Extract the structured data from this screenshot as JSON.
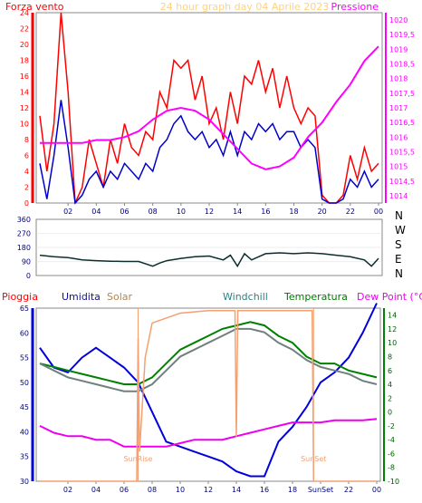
{
  "header": {
    "left_label": "Forza vento",
    "title": "24 hour graph day   04 Aprile 2023",
    "right_label": "Pressione"
  },
  "chart_data": [
    {
      "id": "wind_pressure",
      "type": "line",
      "x_ticks": [
        "02",
        "04",
        "06",
        "08",
        "10",
        "12",
        "14",
        "16",
        "18",
        "20",
        "22",
        "00"
      ],
      "y_left_ticks": [
        "0",
        "2",
        "4",
        "6",
        "8",
        "10",
        "12",
        "14",
        "16",
        "18",
        "20",
        "22",
        "24"
      ],
      "y_left_range": [
        0,
        24
      ],
      "y_right_ticks": [
        "1014",
        "1014,5",
        "1015",
        "1015,5",
        "1016",
        "1016,5",
        "1017",
        "1017,5",
        "1018",
        "1018,5",
        "1019",
        "1019,5",
        "1020"
      ],
      "y_right_range": [
        1013.75,
        1020.25
      ],
      "series": [
        {
          "key": "gust",
          "color": "#ff0000",
          "x": [
            0,
            0.5,
            1,
            1.5,
            2,
            2.5,
            3,
            3.5,
            4,
            4.5,
            5,
            5.5,
            6,
            6.5,
            7,
            7.5,
            8,
            8.5,
            9,
            9.5,
            10,
            10.5,
            11,
            11.5,
            12,
            12.5,
            13,
            13.5,
            14,
            14.5,
            15,
            15.5,
            16,
            16.5,
            17,
            17.5,
            18,
            18.5,
            19,
            19.5,
            20,
            20.5,
            21,
            21.5,
            22,
            22.5,
            23,
            23.5,
            24
          ],
          "values": [
            11,
            4,
            10,
            24,
            14,
            0,
            2,
            8,
            5,
            2,
            8,
            5,
            10,
            7,
            6,
            9,
            8,
            14,
            12,
            18,
            17,
            18,
            13,
            16,
            10,
            12,
            8,
            14,
            10,
            16,
            15,
            18,
            14,
            17,
            12,
            16,
            12,
            10,
            12,
            11,
            1,
            0,
            0,
            1,
            6,
            3,
            7,
            4,
            5
          ]
        },
        {
          "key": "wind",
          "color": "#0000cc",
          "x": [
            0,
            0.5,
            1,
            1.5,
            2,
            2.5,
            3,
            3.5,
            4,
            4.5,
            5,
            5.5,
            6,
            6.5,
            7,
            7.5,
            8,
            8.5,
            9,
            9.5,
            10,
            10.5,
            11,
            11.5,
            12,
            12.5,
            13,
            13.5,
            14,
            14.5,
            15,
            15.5,
            16,
            16.5,
            17,
            17.5,
            18,
            18.5,
            19,
            19.5,
            20,
            20.5,
            21,
            21.5,
            22,
            22.5,
            23,
            23.5,
            24
          ],
          "values": [
            5,
            0.5,
            6,
            13,
            7,
            0,
            1,
            3,
            4,
            2,
            4,
            3,
            5,
            4,
            3,
            5,
            4,
            7,
            8,
            10,
            11,
            9,
            8,
            9,
            7,
            8,
            6,
            9,
            6,
            9,
            8,
            10,
            9,
            10,
            8,
            9,
            9,
            7,
            8,
            7,
            0.5,
            0,
            0,
            0.5,
            3,
            2,
            4,
            2,
            3
          ]
        },
        {
          "key": "pressure",
          "color": "#ff00ff",
          "axis": "right",
          "x": [
            0,
            1,
            2,
            3,
            4,
            5,
            6,
            7,
            8,
            9,
            10,
            11,
            12,
            13,
            14,
            15,
            16,
            17,
            18,
            19,
            20,
            21,
            22,
            23,
            24
          ],
          "values": [
            1015.8,
            1015.8,
            1015.8,
            1015.8,
            1015.9,
            1015.9,
            1016,
            1016.2,
            1016.6,
            1016.9,
            1017,
            1016.9,
            1016.6,
            1016.1,
            1015.6,
            1015.1,
            1014.9,
            1015,
            1015.3,
            1016,
            1016.5,
            1017.2,
            1017.8,
            1018.6,
            1019.1
          ]
        }
      ]
    },
    {
      "id": "wind_direction",
      "type": "line",
      "y_left_ticks": [
        "0",
        "90",
        "180",
        "270",
        "360"
      ],
      "y_right_labels": [
        "N",
        "W",
        "S",
        "E",
        "N"
      ],
      "y_range": [
        0,
        360
      ],
      "series": [
        {
          "key": "direction",
          "color": "#0b2e2e",
          "x": [
            0,
            1,
            2,
            3,
            4,
            5,
            6,
            7,
            8,
            8.5,
            9,
            10,
            11,
            12,
            13,
            13.5,
            14,
            14.5,
            15,
            16,
            17,
            18,
            19,
            20,
            21,
            22,
            23,
            23.5,
            24
          ],
          "values": [
            130,
            120,
            115,
            100,
            95,
            92,
            90,
            90,
            60,
            80,
            95,
            110,
            120,
            125,
            100,
            130,
            60,
            140,
            100,
            140,
            145,
            140,
            145,
            140,
            130,
            120,
            100,
            60,
            110
          ]
        }
      ]
    },
    {
      "id": "weather",
      "type": "line",
      "legend": [
        "Pioggia",
        "Umidita",
        "Solar",
        "Windchill",
        "Temperatura",
        "Dew Point (°C)"
      ],
      "x_ticks": [
        "02",
        "04",
        "06",
        "08",
        "10",
        "12",
        "14",
        "16",
        "18",
        "SunSet",
        "22",
        "00"
      ],
      "y_left_ticks": [
        "30",
        "35",
        "40",
        "45",
        "50",
        "55",
        "60",
        "65"
      ],
      "y_left_range": [
        30,
        65
      ],
      "y_right_ticks": [
        "-10",
        "-8",
        "-6",
        "-4",
        "-2",
        "0",
        "2",
        "4",
        "6",
        "8",
        "10",
        "12",
        "14"
      ],
      "y_right_range": [
        -10,
        15
      ],
      "annotations": {
        "sunrise": "SunRise",
        "sunset": "SunSet"
      },
      "series": [
        {
          "key": "humidity",
          "color": "#0000dd",
          "x": [
            0,
            1,
            2,
            3,
            4,
            5,
            6,
            7,
            8,
            9,
            10,
            11,
            12,
            13,
            14,
            15,
            16,
            17,
            18,
            19,
            20,
            21,
            22,
            23,
            24
          ],
          "values": [
            57,
            53,
            52,
            55,
            57,
            55,
            53,
            50,
            44,
            38,
            37,
            36,
            35,
            34,
            32,
            31,
            31,
            38,
            41,
            45,
            50,
            52,
            55,
            60,
            66
          ]
        },
        {
          "key": "temperature",
          "color": "#008000",
          "axis": "right",
          "x": [
            0,
            1,
            2,
            3,
            4,
            5,
            6,
            7,
            8,
            9,
            10,
            11,
            12,
            13,
            14,
            15,
            16,
            17,
            18,
            19,
            20,
            21,
            22,
            23,
            24
          ],
          "values": [
            7,
            6.5,
            6,
            5.5,
            5,
            4.5,
            4,
            4,
            5,
            7,
            9,
            10,
            11,
            12,
            12.5,
            13,
            12.5,
            11,
            10,
            8,
            7,
            7,
            6,
            5.5,
            5
          ]
        },
        {
          "key": "windchill",
          "color": "#708080",
          "axis": "right",
          "x": [
            0,
            1,
            2,
            3,
            4,
            5,
            6,
            7,
            8,
            9,
            10,
            11,
            12,
            13,
            14,
            15,
            16,
            17,
            18,
            19,
            20,
            21,
            22,
            23,
            24
          ],
          "values": [
            7,
            6,
            5,
            4.5,
            4,
            3.5,
            3,
            3,
            4,
            6,
            8,
            9,
            10,
            11,
            12,
            12,
            11.5,
            10,
            9,
            7.5,
            6.5,
            6,
            5.5,
            4.5,
            4
          ]
        },
        {
          "key": "dewpoint",
          "color": "#ee00ee",
          "axis": "right",
          "x": [
            0,
            1,
            2,
            3,
            4,
            5,
            6,
            7,
            8,
            9,
            10,
            11,
            12,
            13,
            14,
            15,
            16,
            17,
            18,
            19,
            20,
            21,
            22,
            23,
            24
          ],
          "values": [
            -2,
            -3,
            -3.5,
            -3.5,
            -4,
            -4,
            -5,
            -5,
            -5,
            -5,
            -4.5,
            -4,
            -4,
            -4,
            -3.5,
            -3,
            -2.5,
            -2,
            -1.5,
            -1.5,
            -1.5,
            -1.2,
            -1.2,
            -1.2,
            -1
          ]
        },
        {
          "key": "solar",
          "color": "#f4a070",
          "x": [
            0,
            6.9,
            7,
            7.1,
            7.5,
            8,
            9,
            10,
            12,
            13.9,
            14,
            14.1,
            14.5,
            16,
            18,
            19.4,
            19.5,
            24
          ],
          "values": [
            30,
            30,
            59,
            36,
            55,
            62,
            63,
            64,
            64.5,
            64.5,
            39,
            64.5,
            64.5,
            64.5,
            64.5,
            64.5,
            30,
            30
          ]
        }
      ]
    }
  ]
}
